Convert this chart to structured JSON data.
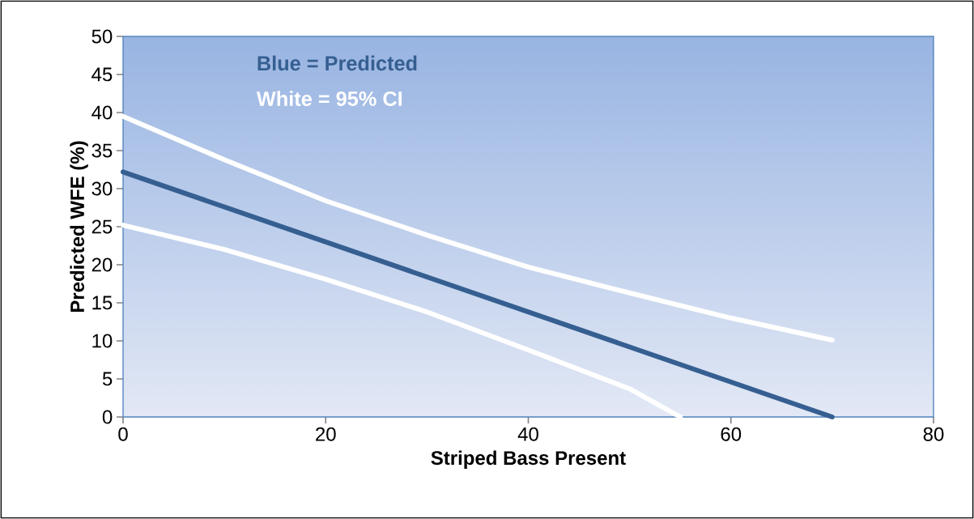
{
  "chart_data": {
    "type": "line",
    "xlabel": "Striped Bass Present",
    "ylabel": "Predicted WFE (%)",
    "annotations": [
      "Blue  = Predicted",
      "White = 95%  CI"
    ],
    "series": [
      {
        "color": "#365f91",
        "x": [
          0,
          70
        ],
        "values": [
          32.2,
          0
        ]
      },
      {
        "color": "#ffffff",
        "x": [
          0,
          10,
          20,
          30,
          40,
          50,
          60,
          70
        ],
        "values": [
          39.5,
          33.8,
          28.4,
          23.9,
          19.7,
          16.3,
          13.0,
          10.1
        ]
      },
      {
        "color": "#ffffff",
        "x": [
          0,
          10,
          20,
          30,
          40,
          50,
          55
        ],
        "values": [
          25.2,
          22.0,
          18.1,
          13.8,
          8.8,
          3.7,
          0
        ]
      }
    ],
    "xlim": [
      0,
      80
    ],
    "xticks": [
      0,
      20,
      40,
      60,
      80
    ],
    "ylim": [
      0,
      50
    ],
    "yticks": [
      0,
      5,
      10,
      15,
      20,
      25,
      30,
      35,
      40,
      45,
      50
    ],
    "marker": "none",
    "line_style": "solid",
    "grid": false
  }
}
